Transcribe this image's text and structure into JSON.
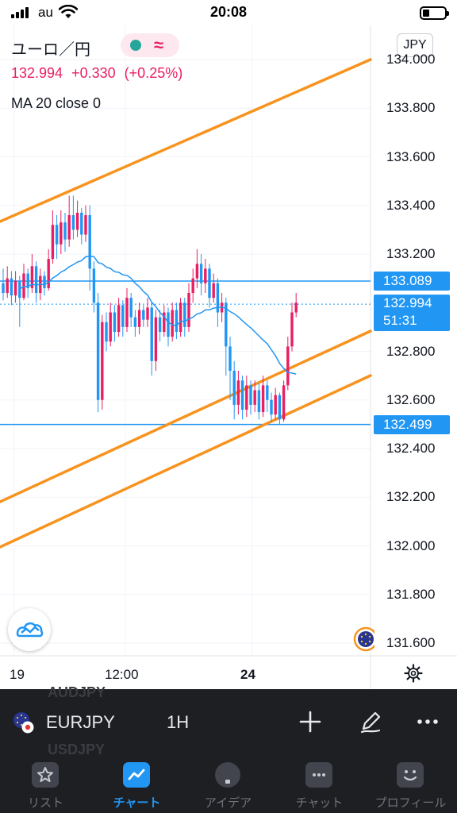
{
  "status_bar": {
    "carrier": "au",
    "time": "20:08"
  },
  "chart_header": {
    "symbol_name": "ユーロ／円",
    "price": "132.994",
    "change": "+0.330",
    "change_pct": "(+0.25%)",
    "indicator": "MA 20 close 0",
    "currency_button": "JPY"
  },
  "price_axis": {
    "labels": [
      "134.000",
      "133.800",
      "133.600",
      "133.400",
      "133.200",
      "132.800",
      "132.600",
      "132.400",
      "132.200",
      "132.000",
      "131.800",
      "131.600"
    ]
  },
  "price_tags": {
    "resistance": "133.089",
    "last_price": "132.994",
    "countdown": "51:31",
    "support": "132.499"
  },
  "time_axis": {
    "labels": [
      "19",
      "12:00",
      "24"
    ]
  },
  "toolbar": {
    "ghost_top": "AUDJPY",
    "ghost_bottom": "USDJPY",
    "pair": "EURJPY",
    "interval": "1H"
  },
  "tabs": [
    {
      "label": "リスト",
      "icon": "star-icon"
    },
    {
      "label": "チャート",
      "icon": "chart-icon"
    },
    {
      "label": "アイデア",
      "icon": "lightbulb-icon"
    },
    {
      "label": "チャット",
      "icon": "chat-icon"
    },
    {
      "label": "プロフィール",
      "icon": "smiley-icon"
    }
  ],
  "colors": {
    "up": "#e91e63",
    "down": "#2196f3",
    "ma": "#2196f3",
    "trendline": "#f7931e",
    "hline": "#2196f3",
    "accent": "#2196f3"
  },
  "chart_data": {
    "type": "candlestick",
    "ylim": [
      131.6,
      134.0
    ],
    "y_ticks": [
      131.6,
      131.8,
      132.0,
      132.2,
      132.4,
      132.6,
      132.8,
      133.2,
      133.4,
      133.6,
      133.8,
      134.0
    ],
    "x_labels": [
      "19",
      "12:00",
      "24"
    ],
    "horizontal_lines": [
      133.089,
      132.499
    ],
    "last_price": 132.994,
    "candles": [
      [
        133.08,
        133.04,
        133.14,
        133.01
      ],
      [
        133.04,
        133.1,
        133.15,
        133.02
      ],
      [
        133.1,
        133.03,
        133.13,
        132.99
      ],
      [
        133.03,
        133.09,
        133.13,
        133.0
      ],
      [
        133.09,
        133.02,
        133.11,
        132.9
      ],
      [
        133.02,
        133.12,
        133.16,
        133.01
      ],
      [
        133.12,
        133.06,
        133.14,
        133.02
      ],
      [
        133.06,
        133.15,
        133.2,
        133.04
      ],
      [
        133.15,
        133.04,
        133.17,
        133.0
      ],
      [
        133.04,
        133.11,
        133.14,
        133.01
      ],
      [
        133.11,
        133.06,
        133.13,
        133.03
      ],
      [
        133.06,
        133.18,
        133.22,
        133.05
      ],
      [
        133.18,
        133.32,
        133.38,
        133.16
      ],
      [
        133.32,
        133.24,
        133.36,
        133.18
      ],
      [
        133.24,
        133.33,
        133.38,
        133.2
      ],
      [
        133.33,
        133.26,
        133.37,
        133.21
      ],
      [
        133.26,
        133.36,
        133.44,
        133.23
      ],
      [
        133.36,
        133.3,
        133.44,
        133.26
      ],
      [
        133.3,
        133.37,
        133.42,
        133.27
      ],
      [
        133.37,
        133.28,
        133.39,
        133.24
      ],
      [
        133.28,
        133.36,
        133.4,
        133.25
      ],
      [
        133.36,
        133.14,
        133.4,
        133.05
      ],
      [
        133.14,
        133.0,
        133.17,
        132.96
      ],
      [
        133.0,
        132.6,
        133.04,
        132.55
      ],
      [
        132.6,
        132.92,
        132.95,
        132.56
      ],
      [
        132.92,
        132.84,
        132.96,
        132.8
      ],
      [
        132.84,
        132.96,
        133.0,
        132.82
      ],
      [
        132.96,
        132.88,
        132.99,
        132.84
      ],
      [
        132.88,
        132.99,
        133.02,
        132.86
      ],
      [
        132.99,
        132.9,
        133.01,
        132.86
      ],
      [
        132.9,
        133.02,
        133.06,
        132.88
      ],
      [
        133.02,
        132.94,
        133.04,
        132.9
      ],
      [
        132.94,
        132.9,
        132.97,
        132.86
      ],
      [
        132.9,
        132.97,
        133.0,
        132.87
      ],
      [
        132.97,
        132.93,
        132.99,
        132.9
      ],
      [
        132.93,
        132.98,
        133.02,
        132.9
      ],
      [
        132.98,
        132.76,
        133.0,
        132.7
      ],
      [
        132.76,
        132.94,
        132.97,
        132.72
      ],
      [
        132.94,
        132.88,
        132.97,
        132.84
      ],
      [
        132.88,
        132.96,
        132.99,
        132.86
      ],
      [
        132.96,
        132.86,
        132.98,
        132.82
      ],
      [
        132.86,
        132.97,
        133.0,
        132.84
      ],
      [
        132.97,
        132.88,
        133.0,
        132.85
      ],
      [
        132.88,
        133.0,
        133.02,
        132.86
      ],
      [
        133.0,
        132.9,
        133.02,
        132.86
      ],
      [
        132.9,
        133.04,
        133.08,
        132.88
      ],
      [
        133.04,
        133.1,
        133.14,
        133.0
      ],
      [
        133.1,
        133.16,
        133.22,
        133.06
      ],
      [
        133.16,
        133.08,
        133.2,
        133.03
      ],
      [
        133.08,
        133.14,
        133.18,
        133.04
      ],
      [
        133.14,
        133.02,
        133.16,
        132.98
      ],
      [
        133.02,
        133.08,
        133.12,
        133.0
      ],
      [
        133.08,
        132.96,
        133.1,
        132.9
      ],
      [
        132.96,
        133.0,
        133.04,
        132.92
      ],
      [
        133.0,
        132.82,
        133.02,
        132.7
      ],
      [
        132.82,
        132.72,
        132.86,
        132.6
      ],
      [
        132.72,
        132.58,
        132.76,
        132.52
      ],
      [
        132.58,
        132.68,
        132.72,
        132.54
      ],
      [
        132.68,
        132.56,
        132.7,
        132.52
      ],
      [
        132.56,
        132.66,
        132.7,
        132.53
      ],
      [
        132.66,
        132.58,
        132.68,
        132.54
      ],
      [
        132.58,
        132.64,
        132.68,
        132.55
      ],
      [
        132.64,
        132.55,
        132.67,
        132.52
      ],
      [
        132.55,
        132.66,
        132.7,
        132.53
      ],
      [
        132.66,
        132.6,
        132.68,
        132.55
      ],
      [
        132.6,
        132.54,
        132.63,
        132.51
      ],
      [
        132.54,
        132.62,
        132.65,
        132.52
      ],
      [
        132.62,
        132.52,
        132.63,
        132.5
      ],
      [
        132.52,
        132.66,
        132.68,
        132.51
      ],
      [
        132.66,
        132.82,
        132.86,
        132.64
      ],
      [
        132.82,
        132.96,
        133.0,
        132.8
      ],
      [
        132.96,
        133.0,
        133.04,
        132.94
      ]
    ]
  }
}
